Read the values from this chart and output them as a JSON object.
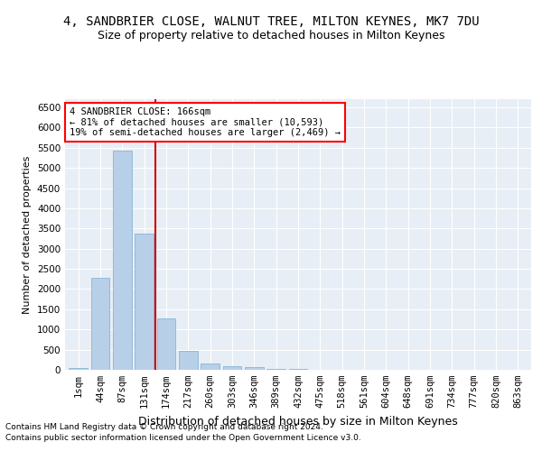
{
  "title": "4, SANDBRIER CLOSE, WALNUT TREE, MILTON KEYNES, MK7 7DU",
  "subtitle": "Size of property relative to detached houses in Milton Keynes",
  "xlabel": "Distribution of detached houses by size in Milton Keynes",
  "ylabel": "Number of detached properties",
  "footnote1": "Contains HM Land Registry data © Crown copyright and database right 2024.",
  "footnote2": "Contains public sector information licensed under the Open Government Licence v3.0.",
  "annotation_title": "4 SANDBRIER CLOSE: 166sqm",
  "annotation_line1": "← 81% of detached houses are smaller (10,593)",
  "annotation_line2": "19% of semi-detached houses are larger (2,469) →",
  "bar_color": "#b8cfe8",
  "bar_edge_color": "#7aadd4",
  "vline_color": "#cc0000",
  "vline_x_index": 3.5,
  "categories": [
    "1sqm",
    "44sqm",
    "87sqm",
    "131sqm",
    "174sqm",
    "217sqm",
    "260sqm",
    "303sqm",
    "346sqm",
    "389sqm",
    "432sqm",
    "475sqm",
    "518sqm",
    "561sqm",
    "604sqm",
    "648sqm",
    "691sqm",
    "734sqm",
    "777sqm",
    "820sqm",
    "863sqm"
  ],
  "values": [
    55,
    2280,
    5420,
    3380,
    1270,
    470,
    165,
    95,
    65,
    28,
    12,
    8,
    4,
    4,
    2,
    2,
    1,
    1,
    1,
    1,
    1
  ],
  "ylim": [
    0,
    6700
  ],
  "yticks": [
    0,
    500,
    1000,
    1500,
    2000,
    2500,
    3000,
    3500,
    4000,
    4500,
    5000,
    5500,
    6000,
    6500
  ],
  "background_color": "#e8eef5",
  "grid_color": "#ffffff",
  "title_fontsize": 10,
  "subtitle_fontsize": 9,
  "xlabel_fontsize": 9,
  "ylabel_fontsize": 8,
  "tick_fontsize": 7.5,
  "annotation_fontsize": 7.5,
  "footnote_fontsize": 6.5
}
